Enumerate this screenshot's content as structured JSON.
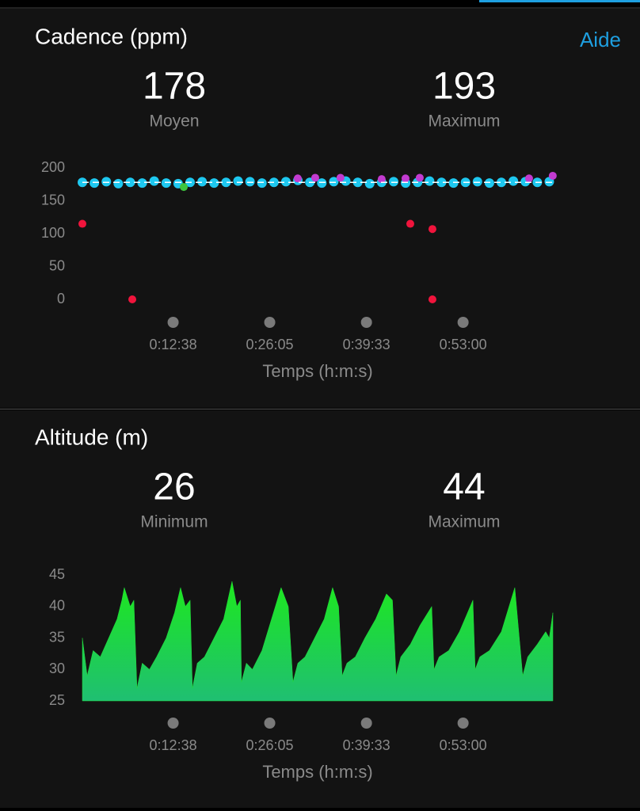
{
  "help": "Aide",
  "chart_data": [
    {
      "type": "scatter",
      "title": "Cadence (ppm)",
      "stats": [
        {
          "value": 178,
          "label": "Moyen"
        },
        {
          "value": 193,
          "label": "Maximum"
        }
      ],
      "x_label": "Temps (h:m:s)",
      "xlim": [
        0,
        3930
      ],
      "xticks": [
        {
          "value": 758,
          "label": "0:12:38"
        },
        {
          "value": 1565,
          "label": "0:26:05"
        },
        {
          "value": 2373,
          "label": "0:39:33"
        },
        {
          "value": 3180,
          "label": "0:53:00"
        }
      ],
      "ylim": [
        0,
        200
      ],
      "yticks": [
        0,
        50,
        100,
        150,
        200
      ],
      "series": [
        {
          "color": "#1ec8f0",
          "x": [
            0,
            100,
            200,
            300,
            400,
            500,
            600,
            700,
            800,
            900,
            1000,
            1100,
            1200,
            1300,
            1400,
            1500,
            1600,
            1700,
            1800,
            1900,
            2000,
            2100,
            2200,
            2300,
            2400,
            2500,
            2600,
            2700,
            2800,
            2900,
            3000,
            3100,
            3200,
            3300,
            3400,
            3500,
            3600,
            3700,
            3800,
            3900
          ],
          "values": [
            178,
            177,
            179,
            176,
            178,
            177,
            180,
            177,
            176,
            178,
            179,
            177,
            178,
            180,
            179,
            177,
            178,
            179,
            181,
            178,
            177,
            179,
            180,
            178,
            176,
            178,
            179,
            177,
            178,
            180,
            178,
            177,
            178,
            179,
            177,
            178,
            180,
            179,
            178,
            179
          ]
        },
        {
          "color": "#c23bd0",
          "x": [
            1799,
            1945,
            2156,
            2500,
            2699,
            2818,
            3731,
            3929
          ],
          "values": [
            184,
            185,
            185,
            183,
            184,
            185,
            184,
            188
          ]
        },
        {
          "color": "#3ec43e",
          "x": [
            847
          ],
          "values": [
            171
          ]
        },
        {
          "color": "#f0143c",
          "x": [
            0,
            417,
            2739,
            2924,
            2924
          ],
          "values": [
            115,
            0,
            115,
            107,
            0
          ]
        }
      ]
    },
    {
      "type": "area",
      "title": "Altitude (m)",
      "stats": [
        {
          "value": 26,
          "label": "Minimum"
        },
        {
          "value": 44,
          "label": "Maximum"
        }
      ],
      "x_label": "Temps (h:m:s)",
      "xlim": [
        0,
        3930
      ],
      "xticks": [
        {
          "value": 758,
          "label": "0:12:38"
        },
        {
          "value": 1565,
          "label": "0:26:05"
        },
        {
          "value": 2373,
          "label": "0:39:33"
        },
        {
          "value": 3180,
          "label": "0:53:00"
        }
      ],
      "ylim": [
        25,
        45
      ],
      "yticks": [
        25,
        30,
        35,
        40,
        45
      ],
      "color": "#22dc3c",
      "x": [
        0,
        40,
        90,
        150,
        220,
        290,
        330,
        350,
        400,
        430,
        456,
        500,
        560,
        620,
        700,
        770,
        820,
        860,
        900,
        919,
        960,
        1020,
        1100,
        1180,
        1250,
        1290,
        1320,
        1329,
        1370,
        1420,
        1500,
        1580,
        1660,
        1720,
        1759,
        1800,
        1860,
        1940,
        2020,
        2090,
        2140,
        2170,
        2210,
        2280,
        2360,
        2450,
        2540,
        2590,
        2620,
        2660,
        2740,
        2820,
        2918,
        2937,
        2980,
        3060,
        3150,
        3262,
        3281,
        3320,
        3400,
        3500,
        3612,
        3678,
        3720,
        3800,
        3870,
        3900,
        3930
      ],
      "values": [
        35,
        29,
        33,
        32,
        35,
        38,
        41,
        43,
        40,
        41,
        27,
        31,
        30,
        32,
        35,
        39,
        43,
        40,
        41,
        27,
        31,
        32,
        35,
        38,
        44,
        40,
        41,
        28,
        31,
        30,
        33,
        38,
        43,
        40,
        28,
        31,
        32,
        35,
        38,
        43,
        40,
        29,
        31,
        32,
        35,
        38,
        42,
        41,
        29,
        32,
        34,
        37,
        40,
        30,
        32,
        33,
        36,
        41,
        30,
        32,
        33,
        36,
        43,
        29,
        32,
        34,
        36,
        35,
        39
      ]
    }
  ]
}
